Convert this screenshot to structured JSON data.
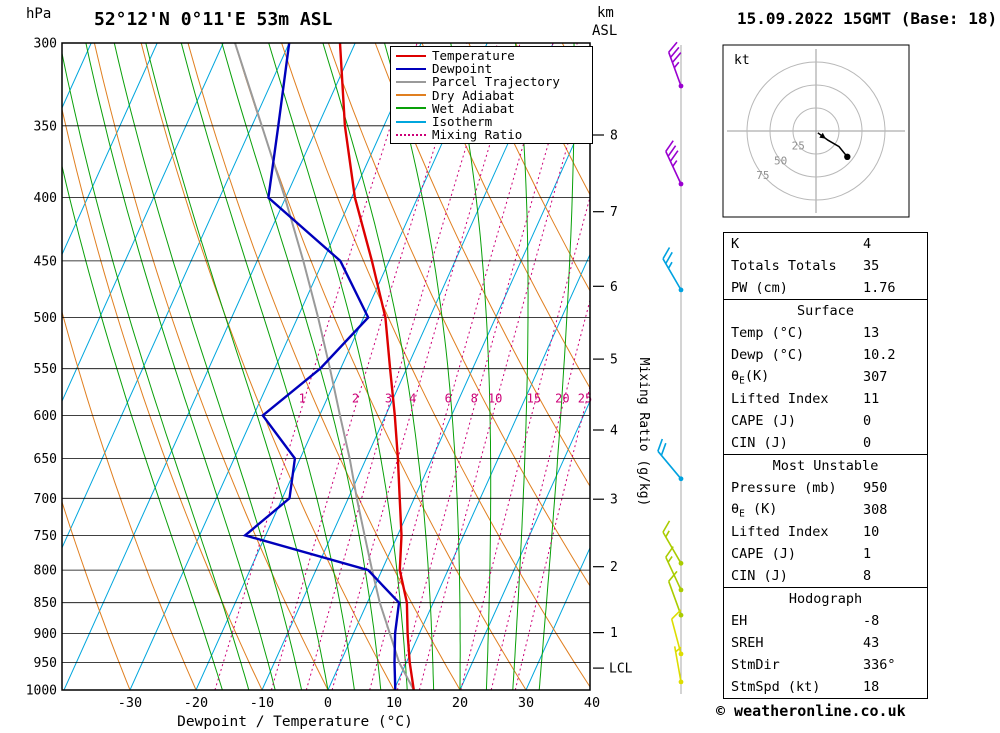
{
  "header": {
    "pressure_unit": "hPa",
    "station_title": "52°12'N 0°11'E 53m ASL",
    "km_label": "km",
    "asl_label": "ASL",
    "datetime": "15.09.2022 15GMT (Base: 18)"
  },
  "footer": {
    "copyright": "© weatheronline.co.uk"
  },
  "legend": {
    "items": [
      {
        "label": "Temperature",
        "color": "#dd0000",
        "style": "solid"
      },
      {
        "label": "Dewpoint",
        "color": "#0000bb",
        "style": "solid"
      },
      {
        "label": "Parcel Trajectory",
        "color": "#9a9a9a",
        "style": "solid"
      },
      {
        "label": "Dry Adiabat",
        "color": "#e07f20",
        "style": "solid"
      },
      {
        "label": "Wet Adiabat",
        "color": "#09a009",
        "style": "solid"
      },
      {
        "label": "Isotherm",
        "color": "#00a6dd",
        "style": "solid"
      },
      {
        "label": "Mixing Ratio",
        "color": "#cc0077",
        "style": "dotted"
      }
    ]
  },
  "panel": {
    "tables": [
      {
        "rows": [
          {
            "label": "K",
            "value": "4"
          },
          {
            "label": "Totals Totals",
            "value": "35"
          },
          {
            "label": "PW (cm)",
            "value": "1.76"
          }
        ]
      },
      {
        "title": "Surface",
        "rows": [
          {
            "label": "Temp (°C)",
            "value": "13"
          },
          {
            "label": "Dewp (°C)",
            "value": "10.2"
          },
          {
            "label": "θ",
            "sub": "E",
            "label2": "(K)",
            "value": "307"
          },
          {
            "label": "Lifted Index",
            "value": "11"
          },
          {
            "label": "CAPE (J)",
            "value": "0"
          },
          {
            "label": "CIN (J)",
            "value": "0"
          }
        ]
      },
      {
        "title": "Most Unstable",
        "rows": [
          {
            "label": "Pressure (mb)",
            "value": "950"
          },
          {
            "label": "θ",
            "sub": "E",
            "label2": " (K)",
            "value": "308"
          },
          {
            "label": "Lifted Index",
            "value": "10"
          },
          {
            "label": "CAPE (J)",
            "value": "1"
          },
          {
            "label": "CIN (J)",
            "value": "8"
          }
        ]
      },
      {
        "title": "Hodograph",
        "rows": [
          {
            "label": "EH",
            "value": "-8"
          },
          {
            "label": "SREH",
            "value": "43"
          },
          {
            "label": "StmDir",
            "value": "336°"
          },
          {
            "label": "StmSpd (kt)",
            "value": "18"
          }
        ]
      }
    ]
  },
  "hodograph": {
    "unit_label": "kt",
    "rings_kt": [
      25,
      50,
      75
    ],
    "trace_kt": [
      [
        2,
        2
      ],
      [
        13,
        10
      ],
      [
        25,
        17
      ],
      [
        34,
        28
      ]
    ],
    "storm": {
      "dir_deg": 336,
      "speed_kt": 18
    }
  },
  "chart_data": {
    "type": "skewt-log-p-sounding",
    "title": "52°12'N 0°11'E 53m ASL",
    "datetime": "15.09.2022 15GMT (Base: 18)",
    "xlabel": "Dewpoint / Temperature (°C)",
    "pressure_ticks_hpa": [
      300,
      350,
      400,
      450,
      500,
      550,
      600,
      650,
      700,
      750,
      800,
      850,
      900,
      950,
      1000
    ],
    "temp_ticks_c": [
      -30,
      -20,
      -10,
      0,
      10,
      20,
      30,
      40
    ],
    "km_ticks": [
      1,
      2,
      3,
      4,
      5,
      6,
      7,
      8
    ],
    "lcl_label": "LCL",
    "lcl_pressure_hpa": 960,
    "mixing_ratio_axis_label": "Mixing Ratio (g/kg)",
    "mixing_ratio_lines_gkg": [
      1,
      2,
      3,
      4,
      6,
      8,
      10,
      15,
      20,
      25
    ],
    "isotherm_step_c": 10,
    "dry_adiabat_theta_c": {
      "min": -30,
      "max": 110,
      "step": 10
    },
    "wet_adiabat_thetaw_c": {
      "min": -16,
      "max": 32,
      "step": 4
    },
    "sounding": {
      "pressure_hpa": [
        1000,
        950,
        900,
        850,
        800,
        750,
        700,
        650,
        600,
        550,
        500,
        450,
        400,
        350,
        300
      ],
      "temperature_c": [
        13,
        10.5,
        8.2,
        6.0,
        2.7,
        0.6,
        -2.2,
        -5.2,
        -8.6,
        -12.5,
        -16.7,
        -22.6,
        -29.5,
        -35.9,
        -42.3
      ],
      "dewpoint_c": [
        10.2,
        8.2,
        6.3,
        4.8,
        -2.1,
        -23.1,
        -18.9,
        -20.8,
        -28.6,
        -23.1,
        -19.3,
        -27.4,
        -42.6,
        -46.0,
        -50.0
      ],
      "parcel_c": [
        13,
        8.9,
        5.5,
        1.9,
        -1.5,
        -5.0,
        -8.7,
        -12.5,
        -16.9,
        -21.6,
        -26.9,
        -33.0,
        -40.1,
        -48.5,
        -58.2
      ]
    },
    "wind_barbs": [
      {
        "pressure_hpa": 325,
        "dir_deg": 340,
        "speed_kt": 35,
        "color": "#9a00d0"
      },
      {
        "pressure_hpa": 390,
        "dir_deg": 335,
        "speed_kt": 35,
        "color": "#9a00d0"
      },
      {
        "pressure_hpa": 475,
        "dir_deg": 330,
        "speed_kt": 25,
        "color": "#00a2e0"
      },
      {
        "pressure_hpa": 675,
        "dir_deg": 320,
        "speed_kt": 20,
        "color": "#00a2e0"
      },
      {
        "pressure_hpa": 790,
        "dir_deg": 330,
        "speed_kt": 15,
        "color": "#aacc00"
      },
      {
        "pressure_hpa": 830,
        "dir_deg": 335,
        "speed_kt": 15,
        "color": "#aacc00"
      },
      {
        "pressure_hpa": 870,
        "dir_deg": 340,
        "speed_kt": 10,
        "color": "#aacc00"
      },
      {
        "pressure_hpa": 935,
        "dir_deg": 345,
        "speed_kt": 10,
        "color": "#dddd00"
      },
      {
        "pressure_hpa": 985,
        "dir_deg": 350,
        "speed_kt": 5,
        "color": "#dddd00"
      }
    ],
    "colors": {
      "temperature": "#dd0000",
      "dewpoint": "#0000bb",
      "parcel": "#9a9a9a",
      "dry_adiabat": "#e07f20",
      "wet_adiabat": "#09a009",
      "isotherm": "#00a6dd",
      "mixing_ratio": "#cc0077",
      "grid": "#000000",
      "barb_staff_line": "#aaaaaa"
    }
  }
}
